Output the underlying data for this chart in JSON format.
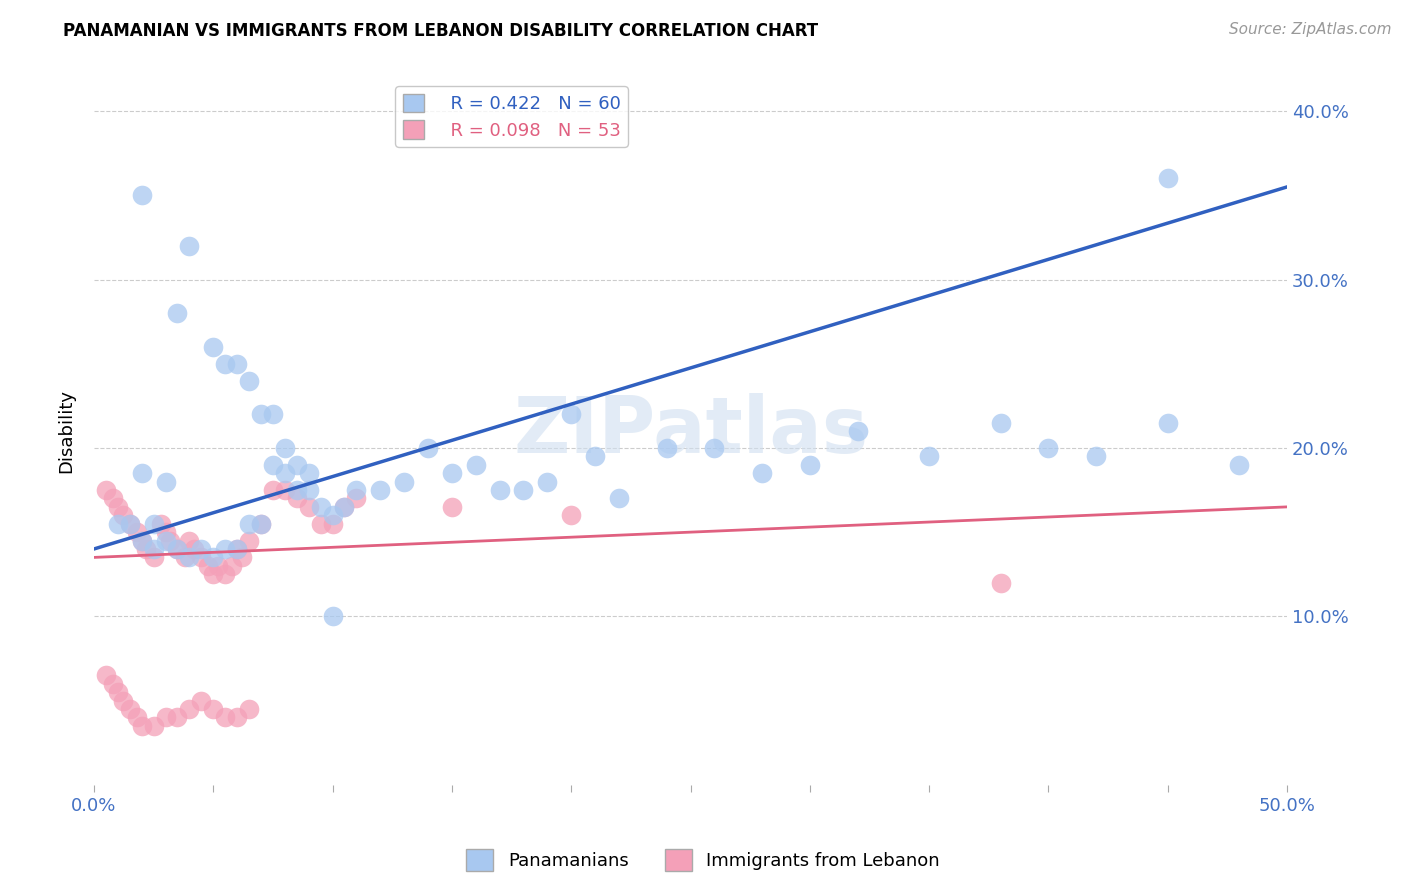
{
  "title": "PANAMANIAN VS IMMIGRANTS FROM LEBANON DISABILITY CORRELATION CHART",
  "source": "Source: ZipAtlas.com",
  "ylabel": "Disability",
  "xlim": [
    0.0,
    0.5
  ],
  "ylim": [
    0.0,
    0.42
  ],
  "yticks": [
    0.1,
    0.2,
    0.3,
    0.4
  ],
  "ytick_labels": [
    "10.0%",
    "20.0%",
    "30.0%",
    "40.0%"
  ],
  "legend_blue_r": "R = 0.422",
  "legend_blue_n": "N = 60",
  "legend_pink_r": "R = 0.098",
  "legend_pink_n": "N = 53",
  "blue_color": "#a8c8f0",
  "pink_color": "#f4a0b8",
  "blue_line_color": "#3060c0",
  "pink_line_color": "#e06080",
  "watermark": "ZIPatlas",
  "blue_scatter_x": [
    0.02,
    0.04,
    0.035,
    0.05,
    0.055,
    0.06,
    0.065,
    0.07,
    0.075,
    0.08,
    0.085,
    0.09,
    0.01,
    0.015,
    0.02,
    0.025,
    0.03,
    0.035,
    0.04,
    0.045,
    0.05,
    0.055,
    0.06,
    0.065,
    0.07,
    0.075,
    0.08,
    0.085,
    0.09,
    0.095,
    0.1,
    0.105,
    0.11,
    0.12,
    0.13,
    0.14,
    0.15,
    0.16,
    0.17,
    0.18,
    0.19,
    0.2,
    0.21,
    0.22,
    0.24,
    0.26,
    0.28,
    0.3,
    0.32,
    0.35,
    0.38,
    0.4,
    0.42,
    0.45,
    0.48,
    0.02,
    0.025,
    0.03,
    0.45,
    0.1
  ],
  "blue_scatter_y": [
    0.35,
    0.32,
    0.28,
    0.26,
    0.25,
    0.25,
    0.24,
    0.22,
    0.22,
    0.2,
    0.19,
    0.185,
    0.155,
    0.155,
    0.145,
    0.14,
    0.145,
    0.14,
    0.135,
    0.14,
    0.135,
    0.14,
    0.14,
    0.155,
    0.155,
    0.19,
    0.185,
    0.175,
    0.175,
    0.165,
    0.16,
    0.165,
    0.175,
    0.175,
    0.18,
    0.2,
    0.185,
    0.19,
    0.175,
    0.175,
    0.18,
    0.22,
    0.195,
    0.17,
    0.2,
    0.2,
    0.185,
    0.19,
    0.21,
    0.195,
    0.215,
    0.2,
    0.195,
    0.215,
    0.19,
    0.185,
    0.155,
    0.18,
    0.36,
    0.1
  ],
  "pink_scatter_x": [
    0.005,
    0.008,
    0.01,
    0.012,
    0.015,
    0.018,
    0.02,
    0.022,
    0.025,
    0.028,
    0.03,
    0.032,
    0.035,
    0.038,
    0.04,
    0.042,
    0.045,
    0.048,
    0.05,
    0.052,
    0.055,
    0.058,
    0.06,
    0.062,
    0.065,
    0.07,
    0.075,
    0.08,
    0.085,
    0.09,
    0.095,
    0.1,
    0.105,
    0.11,
    0.005,
    0.008,
    0.01,
    0.012,
    0.015,
    0.018,
    0.02,
    0.025,
    0.03,
    0.035,
    0.04,
    0.045,
    0.05,
    0.055,
    0.06,
    0.065,
    0.38,
    0.15,
    0.2
  ],
  "pink_scatter_y": [
    0.175,
    0.17,
    0.165,
    0.16,
    0.155,
    0.15,
    0.145,
    0.14,
    0.135,
    0.155,
    0.15,
    0.145,
    0.14,
    0.135,
    0.145,
    0.14,
    0.135,
    0.13,
    0.125,
    0.13,
    0.125,
    0.13,
    0.14,
    0.135,
    0.145,
    0.155,
    0.175,
    0.175,
    0.17,
    0.165,
    0.155,
    0.155,
    0.165,
    0.17,
    0.065,
    0.06,
    0.055,
    0.05,
    0.045,
    0.04,
    0.035,
    0.035,
    0.04,
    0.04,
    0.045,
    0.05,
    0.045,
    0.04,
    0.04,
    0.045,
    0.12,
    0.165,
    0.16
  ],
  "blue_line_x0": 0.0,
  "blue_line_y0": 0.14,
  "blue_line_x1": 0.5,
  "blue_line_y1": 0.355,
  "pink_line_x0": 0.0,
  "pink_line_y0": 0.135,
  "pink_line_x1": 0.5,
  "pink_line_y1": 0.165
}
